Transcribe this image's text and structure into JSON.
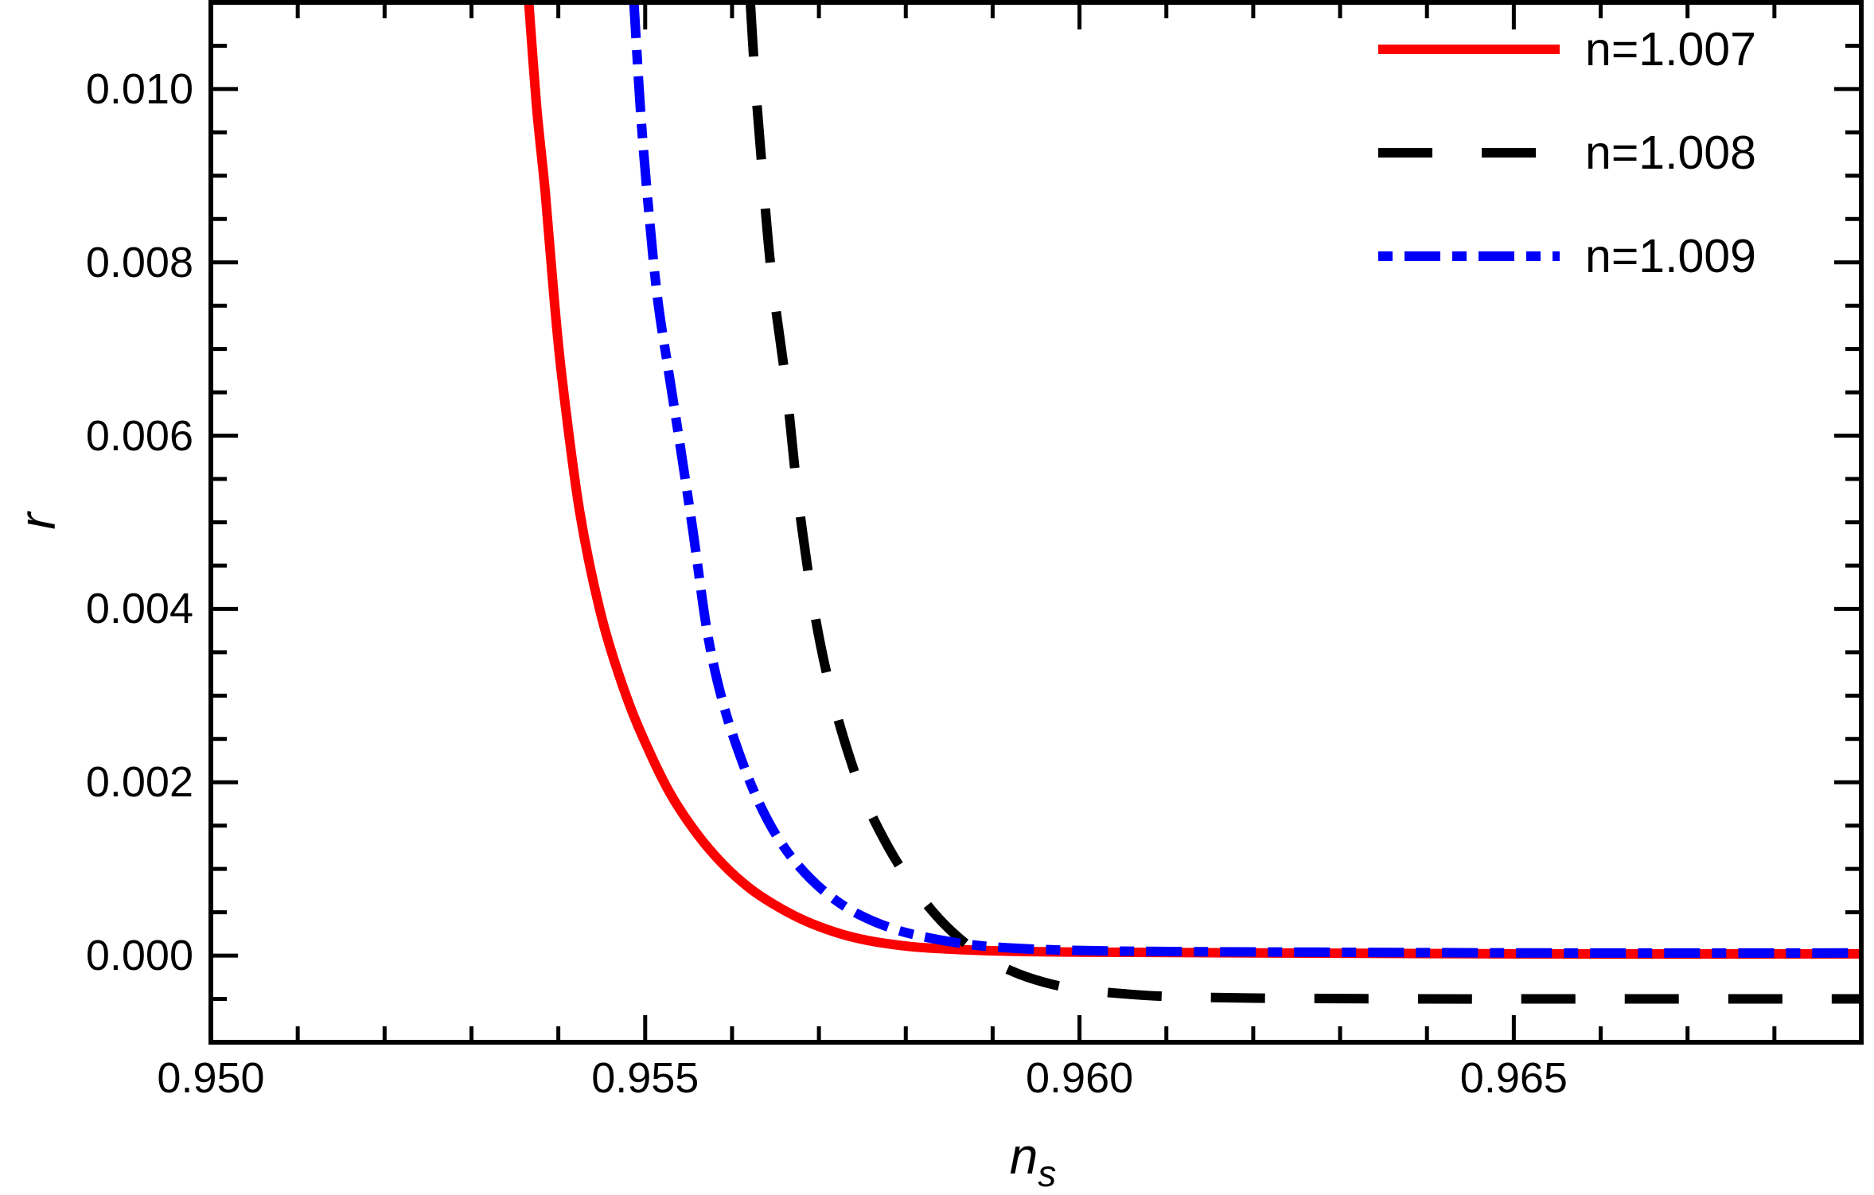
{
  "figure": {
    "background": "#ffffff"
  },
  "chart_data": {
    "type": "line",
    "title": "",
    "xlabel": {
      "base": "n",
      "sub": "s"
    },
    "ylabel": "r",
    "xlim": [
      0.95,
      0.969
    ],
    "ylim": [
      -0.001,
      0.011
    ],
    "grid": false,
    "frame": true,
    "x_ticks": [
      {
        "value": 0.95,
        "label": "0.950"
      },
      {
        "value": 0.955,
        "label": "0.955"
      },
      {
        "value": 0.96,
        "label": "0.960"
      },
      {
        "value": 0.965,
        "label": "0.965"
      }
    ],
    "x_minor_step": 0.001,
    "y_ticks": [
      {
        "value": 0.0,
        "label": "0.000"
      },
      {
        "value": 0.002,
        "label": "0.002"
      },
      {
        "value": 0.004,
        "label": "0.004"
      },
      {
        "value": 0.006,
        "label": "0.006"
      },
      {
        "value": 0.008,
        "label": "0.008"
      },
      {
        "value": 0.01,
        "label": "0.010"
      }
    ],
    "y_minor_step": 0.0005,
    "legend": {
      "position": "top-right"
    },
    "series": [
      {
        "name": "n=1.007",
        "color": "#fb0000",
        "line_style": "solid",
        "line_width": 12,
        "points": [
          [
            0.95366,
            0.011
          ],
          [
            0.95375,
            0.0098
          ],
          [
            0.95385,
            0.0088
          ],
          [
            0.95395,
            0.0076
          ],
          [
            0.95405,
            0.0066
          ],
          [
            0.95425,
            0.0051
          ],
          [
            0.9545,
            0.0039
          ],
          [
            0.95478,
            0.003
          ],
          [
            0.95505,
            0.00235
          ],
          [
            0.9553,
            0.00185
          ],
          [
            0.9556,
            0.0014
          ],
          [
            0.9559,
            0.00105
          ],
          [
            0.9562,
            0.00078
          ],
          [
            0.9565,
            0.00058
          ],
          [
            0.9568,
            0.00042
          ],
          [
            0.9571,
            0.0003
          ],
          [
            0.9574,
            0.00021
          ],
          [
            0.9577,
            0.00015
          ],
          [
            0.9581,
            0.0001
          ],
          [
            0.9586,
            7e-05
          ],
          [
            0.9592,
            5e-05
          ],
          [
            0.96,
            4e-05
          ],
          [
            0.962,
            3e-05
          ],
          [
            0.965,
            2e-05
          ],
          [
            0.969,
            2e-05
          ]
        ]
      },
      {
        "name": "n=1.008",
        "color": "#000000",
        "line_style": "dashed",
        "line_width": 12,
        "points": [
          [
            0.95621,
            0.011
          ],
          [
            0.95626,
            0.0102
          ],
          [
            0.95632,
            0.0094
          ],
          [
            0.95645,
            0.0079
          ],
          [
            0.95662,
            0.0066
          ],
          [
            0.95677,
            0.0052
          ],
          [
            0.95696,
            0.0039
          ],
          [
            0.95715,
            0.003
          ],
          [
            0.95735,
            0.0023
          ],
          [
            0.95755,
            0.00175
          ],
          [
            0.9578,
            0.00125
          ],
          [
            0.95805,
            0.00085
          ],
          [
            0.9583,
            0.00052
          ],
          [
            0.95855,
            0.00026
          ],
          [
            0.95884,
            3e-05
          ],
          [
            0.9592,
            -0.00017
          ],
          [
            0.9596,
            -0.00031
          ],
          [
            0.96,
            -0.00039
          ],
          [
            0.9605,
            -0.00044
          ],
          [
            0.961,
            -0.00047
          ],
          [
            0.962,
            -0.00049
          ],
          [
            0.964,
            -0.0005
          ],
          [
            0.966,
            -0.0005
          ],
          [
            0.969,
            -0.0005
          ]
        ]
      },
      {
        "name": "n=1.009",
        "color": "#0000fa",
        "line_style": "dash-dot",
        "line_width": 12,
        "points": [
          [
            0.95487,
            0.011
          ],
          [
            0.95495,
            0.0097
          ],
          [
            0.95504,
            0.0086
          ],
          [
            0.95514,
            0.0076
          ],
          [
            0.95526,
            0.0068
          ],
          [
            0.9554,
            0.0059
          ],
          [
            0.95555,
            0.0049
          ],
          [
            0.95572,
            0.0037
          ],
          [
            0.9559,
            0.0029
          ],
          [
            0.95612,
            0.00223
          ],
          [
            0.95635,
            0.00168
          ],
          [
            0.9566,
            0.00125
          ],
          [
            0.9569,
            0.00089
          ],
          [
            0.95722,
            0.00062
          ],
          [
            0.95755,
            0.00043
          ],
          [
            0.95795,
            0.00028
          ],
          [
            0.9584,
            0.00018
          ],
          [
            0.9589,
            0.00011
          ],
          [
            0.9596,
            7e-05
          ],
          [
            0.9606,
            5e-05
          ],
          [
            0.9625,
            4e-05
          ],
          [
            0.9655,
            3e-05
          ],
          [
            0.969,
            3e-05
          ]
        ]
      }
    ]
  }
}
